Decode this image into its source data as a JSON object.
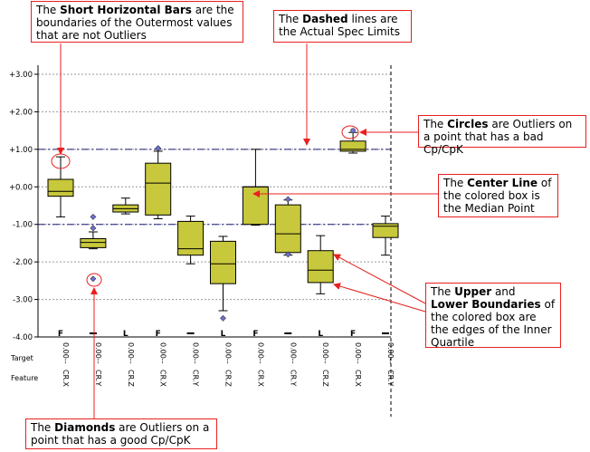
{
  "callouts": {
    "bars": {
      "pre": "The ",
      "bold": "Short Horizontal Bars",
      "post": " are the boundaries of the Outermost values that are not Outliers"
    },
    "dashed": {
      "pre": "The ",
      "bold": "Dashed",
      "post": " lines are the Actual Spec Limits"
    },
    "circles": {
      "pre": "The ",
      "bold": "Circles",
      "post": " are Outliers on a point that has a bad Cp/CpK"
    },
    "center": {
      "pre": "The ",
      "bold": "Center Line",
      "post": " of the colored box is the Median Point"
    },
    "quartile": {
      "pre": "The ",
      "bold1": "Upper",
      "mid1": " and ",
      "bold2": "Lower Boundaries",
      "post": " of the colored box are the edges of the Inner Quartile"
    },
    "diamonds": {
      "pre": "The ",
      "bold": "Diamonds",
      "post": " are Outliers on a point that has a good Cp/CpK"
    }
  },
  "row_labels": {
    "target": "Target",
    "feature": "Feature"
  },
  "colors": {
    "box": "#c8c83c",
    "outlier": "#7070d8",
    "spec_line": "#1c1c7a",
    "callout_border": "#e8201f",
    "arrow": "#e8201f"
  },
  "chart_data": {
    "type": "box",
    "ylim": [
      -4.0,
      3.2
    ],
    "yticks": [
      3,
      2,
      1,
      0,
      -1,
      -2,
      -3,
      -4
    ],
    "ytick_labels": [
      "+3.00",
      "+2.00",
      "+1.00",
      "+0.00",
      "-1.00",
      "-2.00",
      "-3.00",
      "-4.00"
    ],
    "spec_limits": [
      1.0,
      -1.0
    ],
    "features": [
      {
        "name": "CR.X",
        "target": "0.00",
        "flag": "F",
        "low": -0.8,
        "q1": -0.25,
        "median": -0.12,
        "q3": 0.2,
        "high": 0.8,
        "diamonds": [],
        "circles": []
      },
      {
        "name": "CR.Y",
        "target": "0.00",
        "flag": "",
        "low": -1.65,
        "q1": -1.62,
        "median": -1.48,
        "q3": -1.38,
        "high": -1.2,
        "diamonds": [
          -0.8,
          -1.1,
          -2.45
        ],
        "circles": []
      },
      {
        "name": "CR.Z",
        "target": "0.00",
        "flag": "L",
        "low": -0.72,
        "q1": -0.67,
        "median": -0.58,
        "q3": -0.48,
        "high": -0.3,
        "diamonds": [],
        "circles": []
      },
      {
        "name": "CR.X",
        "target": "0.00",
        "flag": "F",
        "low": -0.85,
        "q1": -0.75,
        "median": 0.1,
        "q3": 0.63,
        "high": 0.95,
        "diamonds": [
          1.03
        ],
        "circles": []
      },
      {
        "name": "CR.Y",
        "target": "0.00",
        "flag": "",
        "low": -2.05,
        "q1": -1.82,
        "median": -1.65,
        "q3": -0.92,
        "high": -0.78,
        "diamonds": [],
        "circles": []
      },
      {
        "name": "CR.Z",
        "target": "0.00",
        "flag": "L",
        "low": -3.3,
        "q1": -2.58,
        "median": -2.05,
        "q3": -1.45,
        "high": -1.32,
        "diamonds": [
          -3.5
        ],
        "circles": []
      },
      {
        "name": "CR.X",
        "target": "0.00",
        "flag": "F",
        "low": -1.02,
        "q1": -1.0,
        "median": 0.0,
        "q3": 0.0,
        "high": 1.0,
        "diamonds": [],
        "circles": []
      },
      {
        "name": "CR.Y",
        "target": "0.00",
        "flag": "",
        "low": -1.82,
        "q1": -1.75,
        "median": -1.25,
        "q3": -0.48,
        "high": -0.35,
        "diamonds": [
          -1.8,
          -0.33
        ],
        "circles": []
      },
      {
        "name": "CR.Z",
        "target": "0.00",
        "flag": "L",
        "low": -2.85,
        "q1": -2.55,
        "median": -2.22,
        "q3": -1.7,
        "high": -1.3,
        "diamonds": [],
        "circles": []
      },
      {
        "name": "CR.X",
        "target": "0.00",
        "flag": "F",
        "low": 0.9,
        "q1": 0.95,
        "median": 1.0,
        "q3": 1.22,
        "high": 1.45,
        "diamonds": [],
        "circles": [
          1.5
        ]
      },
      {
        "name": "CR.Y",
        "target": "0.00",
        "flag": "",
        "low": -1.82,
        "q1": -1.35,
        "median": -1.05,
        "q3": -0.98,
        "high": -0.78,
        "diamonds": [],
        "circles": []
      }
    ]
  }
}
